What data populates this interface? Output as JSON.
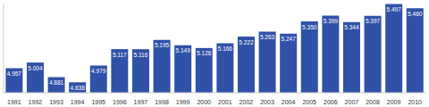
{
  "chart_data": {
    "type": "bar",
    "categories": [
      "1991",
      "1992",
      "1993",
      "1994",
      "1995",
      "1996",
      "1997",
      "1998",
      "1999",
      "2000",
      "2001",
      "2002",
      "2003",
      "2004",
      "2005",
      "2006",
      "2007",
      "2008",
      "2009",
      "2010"
    ],
    "values": [
      4957,
      5004,
      4881,
      4838,
      4979,
      5117,
      5116,
      5195,
      5149,
      5126,
      5166,
      5222,
      5263,
      5247,
      5350,
      5399,
      5344,
      5397,
      5497,
      5460
    ],
    "value_labels": [
      "4.957",
      "5.004",
      "4.881",
      "4.838",
      "4.979",
      "5.117",
      "5.116",
      "5.195",
      "5.149",
      "5.126",
      "5.166",
      "5.222",
      "5.263",
      "5.247",
      "5.350",
      "5.399",
      "5.344",
      "5.397",
      "5.497",
      "5.460"
    ],
    "color": "#2f51a8",
    "ylim": [
      4750,
      5500
    ],
    "data_labels": true,
    "tick_labels": "x",
    "grid": false
  }
}
